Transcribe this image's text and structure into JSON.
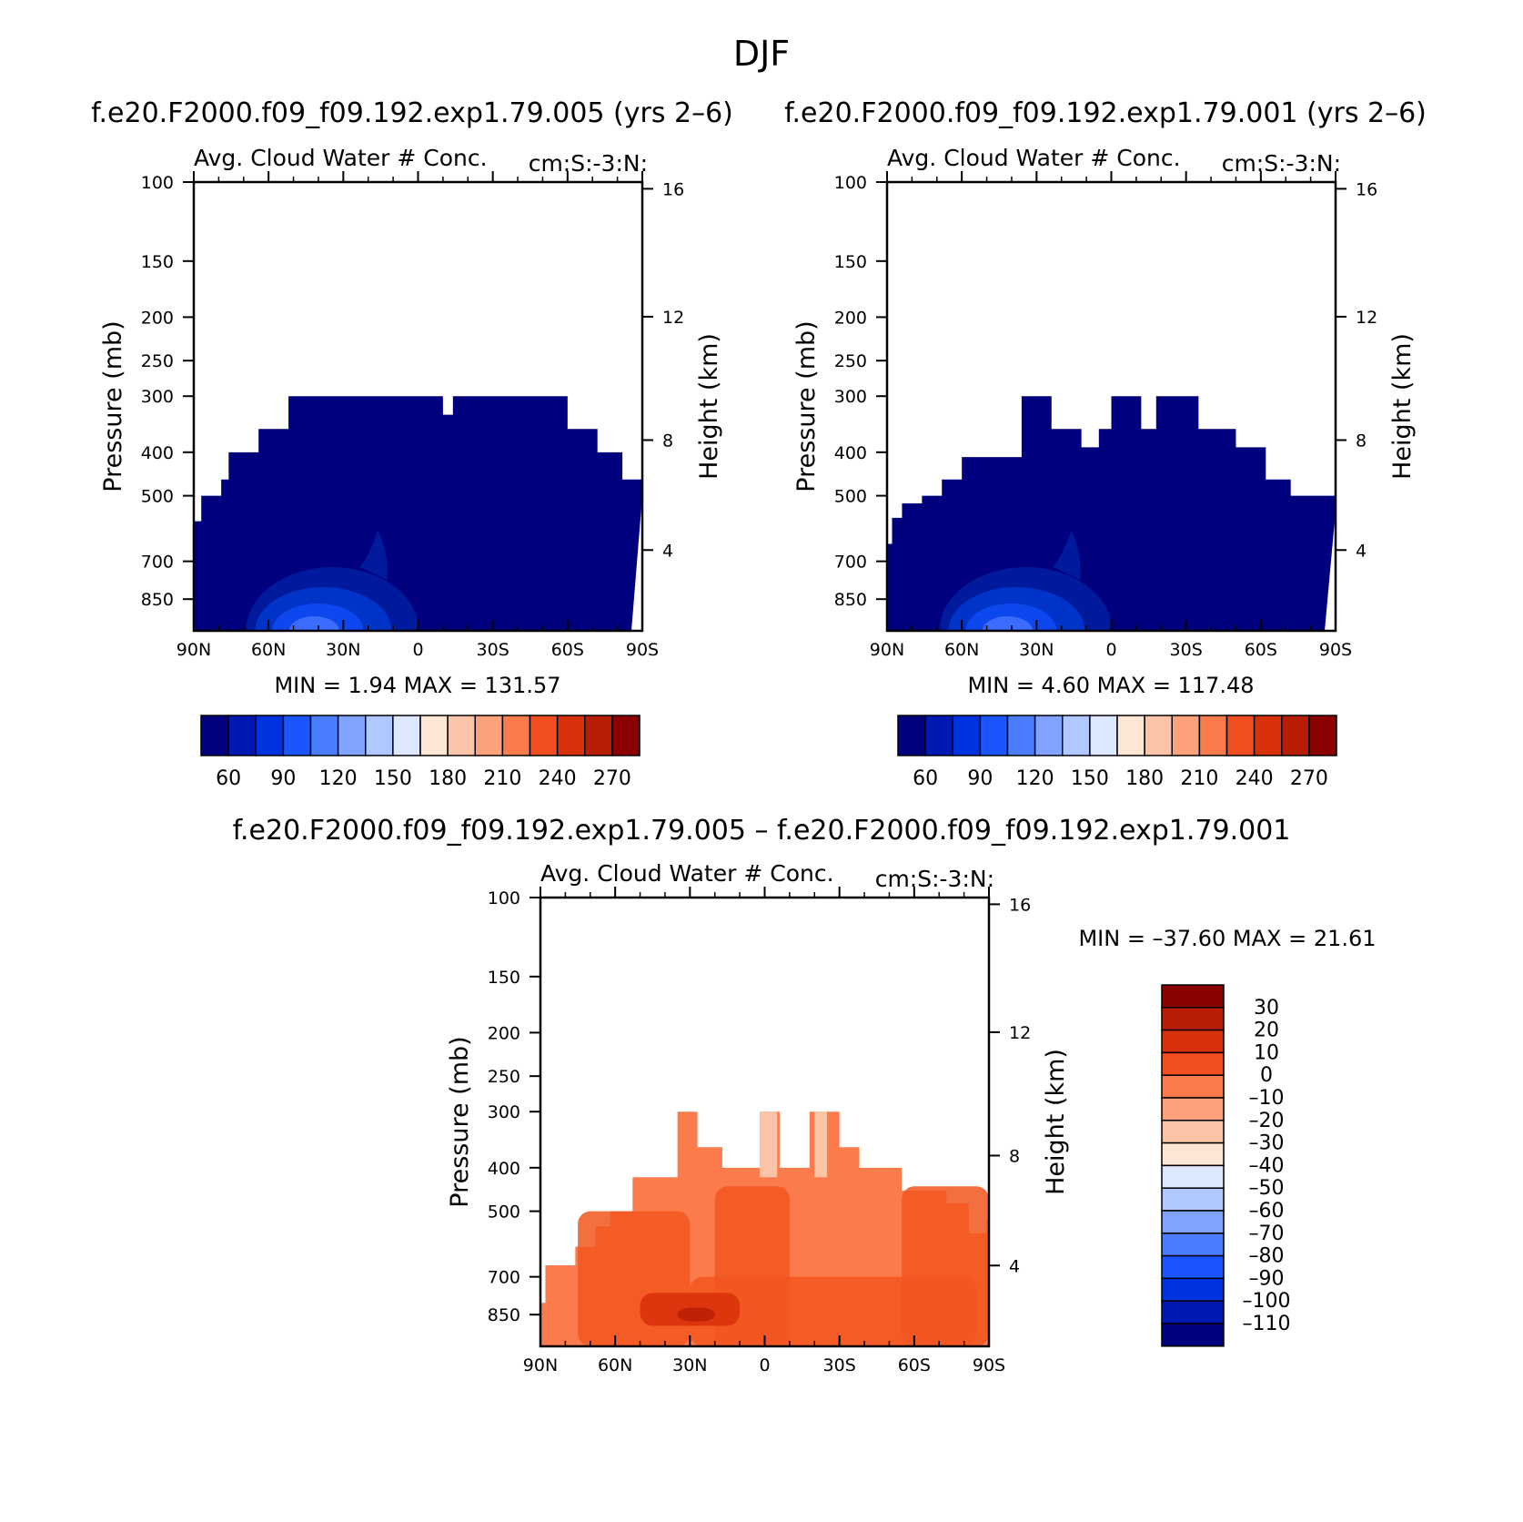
{
  "figure": {
    "title": "DJF",
    "diff_title": "f.e20.F2000.f09_f09.192.exp1.79.005 – f.e20.F2000.f09_f09.192.exp1.79.001"
  },
  "chart_data": [
    {
      "type": "heatmap",
      "title": "f.e20.F2000.f09_f09.192.exp1.79.005 (yrs 2–6)",
      "subtitle_left": "Avg. Cloud Water # Conc.",
      "subtitle_right": "cm:S:-3:N:",
      "ylabel": "Pressure (mb)",
      "ylabel_right": "Height (km)",
      "x_ticks": [
        "90N",
        "60N",
        "30N",
        "0",
        "30S",
        "60S",
        "90S"
      ],
      "y_ticks": [
        100,
        150,
        200,
        250,
        300,
        400,
        500,
        700,
        850
      ],
      "y_right_ticks": [
        16,
        12,
        8,
        4
      ],
      "ylim": [
        100,
        1000
      ],
      "y_scale": "log",
      "minmax_text": "MIN =    1.94   MAX = 131.57",
      "min": 1.94,
      "max": 131.57,
      "colorbar_labels": [
        "60",
        "90",
        "120",
        "150",
        "180",
        "210",
        "240",
        "270"
      ],
      "colorbar_colors": [
        "#00007f",
        "#0019b3",
        "#0033e0",
        "#1a55ff",
        "#4a7dff",
        "#7fa3ff",
        "#b0c8ff",
        "#dbe8ff",
        "#fde6d4",
        "#fcc4a6",
        "#fca27a",
        "#fb7b4d",
        "#f24e1f",
        "#d8300a",
        "#b71e05",
        "#8b0000"
      ],
      "top_profile": [
        [
          -90,
          570
        ],
        [
          -87,
          500
        ],
        [
          -79,
          460
        ],
        [
          -76,
          400
        ],
        [
          -64,
          355
        ],
        [
          -52,
          300
        ],
        [
          10,
          330
        ],
        [
          14,
          300
        ],
        [
          53,
          300
        ],
        [
          60,
          355
        ],
        [
          72,
          400
        ],
        [
          82,
          460
        ],
        [
          90,
          500
        ]
      ],
      "cloud_features": "weak low-level maximum near 35N below 700 mb"
    },
    {
      "type": "heatmap",
      "title": "f.e20.F2000.f09_f09.192.exp1.79.001 (yrs 2–6)",
      "subtitle_left": "Avg. Cloud Water # Conc.",
      "subtitle_right": "cm:S:-3:N:",
      "ylabel": "Pressure (mb)",
      "ylabel_right": "Height (km)",
      "x_ticks": [
        "90N",
        "60N",
        "30N",
        "0",
        "30S",
        "60S",
        "90S"
      ],
      "y_ticks": [
        100,
        150,
        200,
        250,
        300,
        400,
        500,
        700,
        850
      ],
      "y_right_ticks": [
        16,
        12,
        8,
        4
      ],
      "ylim": [
        100,
        1000
      ],
      "y_scale": "log",
      "minmax_text": "MIN =    4.60   MAX = 117.48",
      "min": 4.6,
      "max": 117.48,
      "colorbar_labels": [
        "60",
        "90",
        "120",
        "150",
        "180",
        "210",
        "240",
        "270"
      ],
      "colorbar_colors": [
        "#00007f",
        "#0019b3",
        "#0033e0",
        "#1a55ff",
        "#4a7dff",
        "#7fa3ff",
        "#b0c8ff",
        "#dbe8ff",
        "#fde6d4",
        "#fcc4a6",
        "#fca27a",
        "#fb7b4d",
        "#f24e1f",
        "#d8300a",
        "#b71e05",
        "#8b0000"
      ],
      "top_profile": [
        [
          -90,
          640
        ],
        [
          -88,
          560
        ],
        [
          -84,
          520
        ],
        [
          -76,
          500
        ],
        [
          -68,
          460
        ],
        [
          -60,
          410
        ],
        [
          -36,
          300
        ],
        [
          -24,
          355
        ],
        [
          -12,
          390
        ],
        [
          -5,
          355
        ],
        [
          0,
          300
        ],
        [
          12,
          355
        ],
        [
          18,
          300
        ],
        [
          35,
          355
        ],
        [
          50,
          390
        ],
        [
          62,
          460
        ],
        [
          72,
          500
        ],
        [
          90,
          540
        ]
      ],
      "cloud_features": "weak low-level maximum near 30N below 700 mb"
    },
    {
      "type": "heatmap",
      "title": "f.e20.F2000.f09_f09.192.exp1.79.005 – f.e20.F2000.f09_f09.192.exp1.79.001",
      "subtitle_left": "Avg. Cloud Water # Conc.",
      "subtitle_right": "cm:S:-3:N:",
      "ylabel": "Pressure (mb)",
      "ylabel_right": "Height (km)",
      "x_ticks": [
        "90N",
        "60N",
        "30N",
        "0",
        "30S",
        "60S",
        "90S"
      ],
      "y_ticks": [
        100,
        150,
        200,
        250,
        300,
        400,
        500,
        700,
        850
      ],
      "y_right_ticks": [
        16,
        12,
        8,
        4
      ],
      "ylim": [
        100,
        1000
      ],
      "y_scale": "log",
      "minmax_text": "MIN = –37.60   MAX =  21.61",
      "min": -37.6,
      "max": 21.61,
      "colorbar_labels": [
        "30",
        "20",
        "10",
        "0",
        "–10",
        "–20",
        "–30",
        "–40",
        "–50",
        "–60",
        "–70",
        "–80",
        "–90",
        "–100",
        "–110"
      ],
      "colorbar_colors": [
        "#8b0000",
        "#b71e05",
        "#d8300a",
        "#f24e1f",
        "#fb7b4d",
        "#fca27a",
        "#fcc4a6",
        "#fde6d4",
        "#dbe8ff",
        "#b0c8ff",
        "#7fa3ff",
        "#4a7dff",
        "#1a55ff",
        "#0033e0",
        "#0019b3",
        "#00007f"
      ]
    }
  ]
}
